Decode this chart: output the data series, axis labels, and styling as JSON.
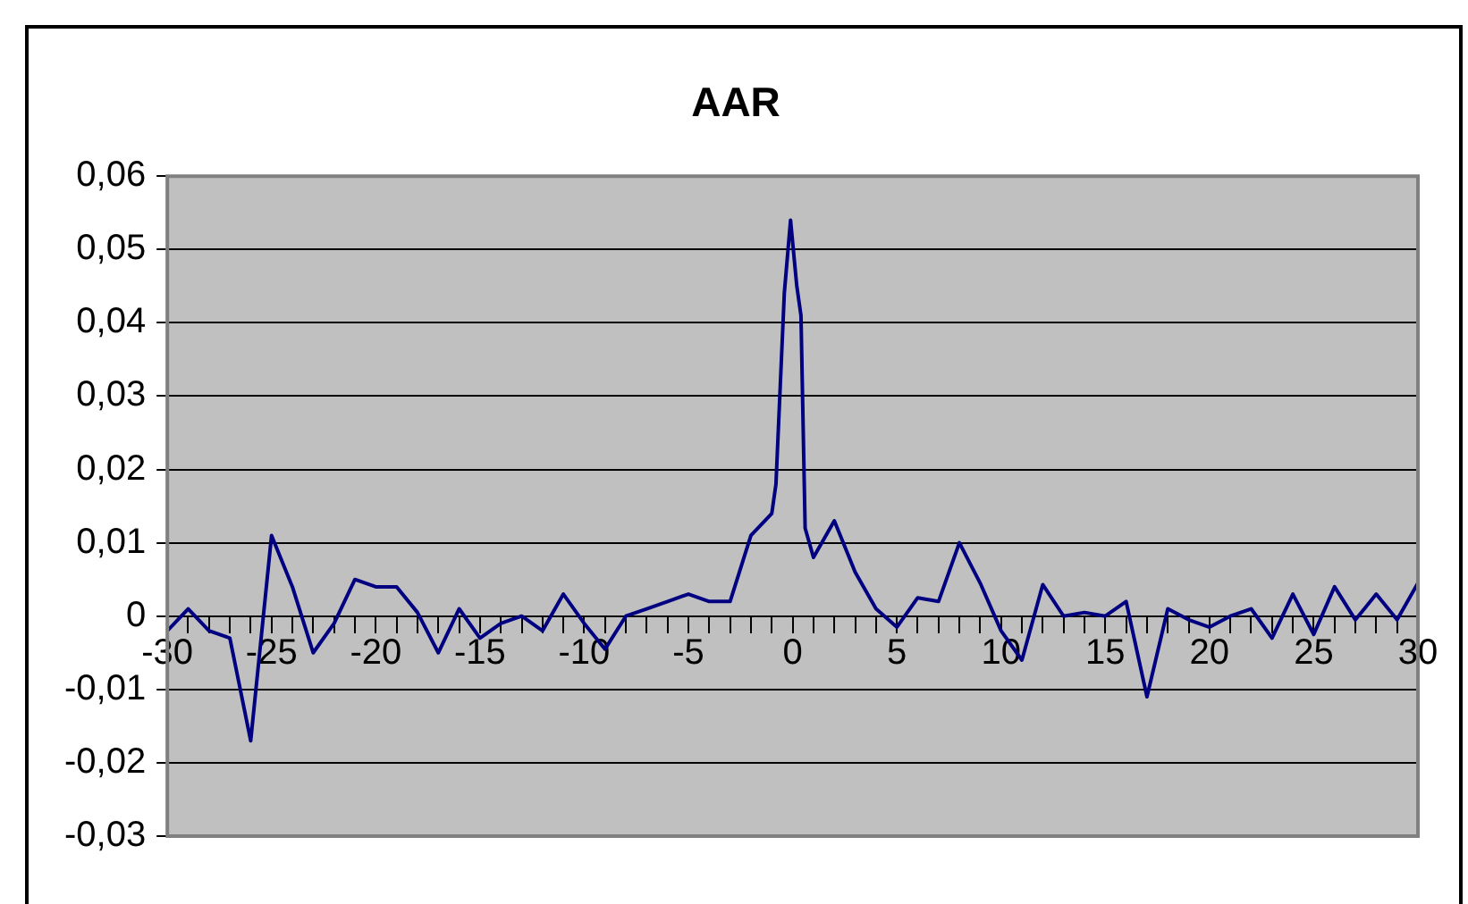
{
  "chart_data": {
    "type": "line",
    "title": "AAR",
    "x": [
      -30,
      -29,
      -28,
      -27,
      -26,
      -25,
      -24,
      -23,
      -22,
      -21,
      -20,
      -19,
      -18,
      -17,
      -16,
      -15,
      -14,
      -13,
      -12,
      -11,
      -10,
      -9,
      -8,
      -7,
      -6,
      -5,
      -4,
      -3,
      -2,
      -1,
      -0.8,
      -0.4,
      -0.1,
      0.2,
      0.4,
      0.6,
      1,
      2,
      3,
      4,
      5,
      6,
      7,
      8,
      9,
      10,
      11,
      12,
      13,
      14,
      15,
      16,
      17,
      18,
      19,
      20,
      21,
      22,
      23,
      24,
      25,
      26,
      27,
      28,
      29,
      30
    ],
    "series": [
      {
        "color": "#000080",
        "values": [
          -0.002,
          0.001,
          -0.002,
          -0.003,
          -0.017,
          0.011,
          0.004,
          -0.005,
          -0.001,
          0.005,
          0.004,
          0.004,
          0.0005,
          -0.005,
          0.001,
          -0.003,
          -0.001,
          0,
          -0.002,
          0.003,
          -0.001,
          -0.0045,
          0,
          0.001,
          0.002,
          0.003,
          0.002,
          0.002,
          0.011,
          0.014,
          0.018,
          0.044,
          0.054,
          0.045,
          0.041,
          0.012,
          0.008,
          0.013,
          0.006,
          0.001,
          -0.0015,
          0.0025,
          0.002,
          0.01,
          0.0045,
          -0.002,
          -0.006,
          0.0043,
          0,
          0.0005,
          0,
          0.002,
          -0.011,
          0.001,
          -0.0005,
          -0.0015,
          0,
          0.001,
          -0.003,
          0.003,
          -0.0025,
          0.004,
          -0.0005,
          0.003,
          -0.0005,
          0.0045
        ]
      }
    ],
    "xlim": [
      -30,
      30
    ],
    "xticks": [
      -30,
      {
        "value": -29,
        "label": null
      },
      {
        "value": -28,
        "label": null
      },
      {
        "value": -27,
        "label": null
      },
      {
        "value": -26,
        "label": null
      },
      -25,
      {
        "value": -24,
        "label": null
      },
      {
        "value": -23,
        "label": null
      },
      {
        "value": -22,
        "label": null
      },
      {
        "value": -21,
        "label": null
      },
      -20,
      {
        "value": -19,
        "label": null
      },
      {
        "value": -18,
        "label": null
      },
      {
        "value": -17,
        "label": null
      },
      {
        "value": -16,
        "label": null
      },
      -15,
      {
        "value": -14,
        "label": null
      },
      {
        "value": -13,
        "label": null
      },
      {
        "value": -12,
        "label": null
      },
      {
        "value": -11,
        "label": null
      },
      -10,
      {
        "value": -9,
        "label": null
      },
      {
        "value": -8,
        "label": null
      },
      {
        "value": -7,
        "label": null
      },
      {
        "value": -6,
        "label": null
      },
      -5,
      {
        "value": -4,
        "label": null
      },
      {
        "value": -3,
        "label": null
      },
      {
        "value": -2,
        "label": null
      },
      {
        "value": -1,
        "label": null
      },
      0,
      {
        "value": 1,
        "label": null
      },
      {
        "value": 2,
        "label": null
      },
      {
        "value": 3,
        "label": null
      },
      {
        "value": 4,
        "label": null
      },
      5,
      {
        "value": 6,
        "label": null
      },
      {
        "value": 7,
        "label": null
      },
      {
        "value": 8,
        "label": null
      },
      {
        "value": 9,
        "label": null
      },
      10,
      {
        "value": 11,
        "label": null
      },
      {
        "value": 12,
        "label": null
      },
      {
        "value": 13,
        "label": null
      },
      {
        "value": 14,
        "label": null
      },
      15,
      {
        "value": 16,
        "label": null
      },
      {
        "value": 17,
        "label": null
      },
      {
        "value": 18,
        "label": null
      },
      {
        "value": 19,
        "label": null
      },
      20,
      {
        "value": 21,
        "label": null
      },
      {
        "value": 22,
        "label": null
      },
      {
        "value": 23,
        "label": null
      },
      {
        "value": 24,
        "label": null
      },
      25,
      {
        "value": 26,
        "label": null
      },
      {
        "value": 27,
        "label": null
      },
      {
        "value": 28,
        "label": null
      },
      {
        "value": 29,
        "label": null
      },
      30
    ],
    "ylim": [
      -0.03,
      0.06
    ],
    "yticks": [
      {
        "value": -0.03,
        "label": "-0,03"
      },
      {
        "value": -0.02,
        "label": "-0,02"
      },
      {
        "value": -0.01,
        "label": "-0,01"
      },
      {
        "value": 0,
        "label": "0"
      },
      {
        "value": 0.01,
        "label": "0,01"
      },
      {
        "value": 0.02,
        "label": "0,02"
      },
      {
        "value": 0.03,
        "label": "0,03"
      },
      {
        "value": 0.04,
        "label": "0,04"
      },
      {
        "value": 0.05,
        "label": "0,05"
      },
      {
        "value": 0.06,
        "label": "0,06"
      }
    ],
    "grid": "y",
    "marker": "none",
    "line_style": "solid"
  }
}
